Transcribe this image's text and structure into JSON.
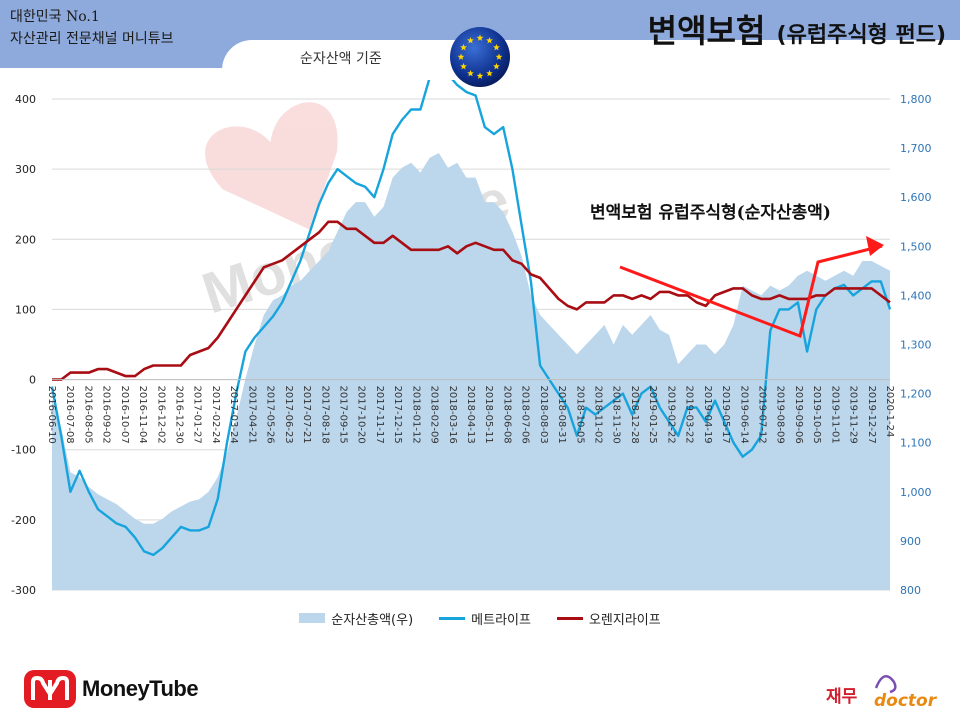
{
  "header": {
    "brand_line1": "대한민국 No.1",
    "brand_line2": "자산관리 전문채널 머니튜브",
    "title_main": "변액보험",
    "title_sub": "(유럽주식형 펀드)",
    "basis_label": "순자산액 기준"
  },
  "annotation": "변액보험 유럽주식형(순자산총액)",
  "watermark": "MoneyTube",
  "colors": {
    "header_bg": "#8eaadc",
    "area": "#bcd6ec",
    "metlife": "#17a4dd",
    "orange": "#a80d13",
    "trend_arrow": "#ff1a1a",
    "right_axis_text": "#2e75b6"
  },
  "legend": {
    "area_label": "순자산총액(우)",
    "metlife_label": "메트라이프",
    "orange_label": "오렌지라이프"
  },
  "footer": {
    "logo_text": "MoneyTube",
    "doctor_text1": "재무",
    "doctor_text2": "doctor"
  },
  "chart_data": {
    "type": "line",
    "left_axis": {
      "min": -300,
      "max": 400,
      "ticks": [
        "400",
        "300",
        "200",
        "100",
        "0",
        "-100",
        "-200",
        "-300"
      ]
    },
    "right_axis": {
      "min": 800,
      "max": 1800,
      "ticks": [
        "1,800",
        "1,700",
        "1,600",
        "1,500",
        "1,400",
        "1,300",
        "1,200",
        "1,100",
        "1,000",
        "900",
        "800"
      ]
    },
    "grid": true,
    "legend_position": "bottom",
    "x_tick_labels": [
      "2016-06-10",
      "2016-07-08",
      "2016-08-05",
      "2016-09-02",
      "2016-10-07",
      "2016-11-04",
      "2016-12-02",
      "2016-12-30",
      "2017-01-27",
      "2017-02-24",
      "2017-03-24",
      "2017-04-21",
      "2017-05-26",
      "2017-06-23",
      "2017-07-21",
      "2017-08-18",
      "2017-09-15",
      "2017-10-20",
      "2017-11-17",
      "2017-12-15",
      "2018-01-12",
      "2018-02-09",
      "2018-03-16",
      "2018-04-13",
      "2018-05-11",
      "2018-06-08",
      "2018-07-06",
      "2018-08-03",
      "2018-08-31",
      "2018-10-05",
      "2018-11-02",
      "2018-11-30",
      "2018-12-28",
      "2019-01-25",
      "2019-02-22",
      "2019-03-22",
      "2019-04-19",
      "2019-05-17",
      "2019-06-14",
      "2019-07-12",
      "2019-08-09",
      "2019-09-06",
      "2019-10-05",
      "2019-11-01",
      "2019-11-29",
      "2019-12-27",
      "2020-1-24"
    ],
    "series": [
      {
        "name": "순자산총액(우)",
        "axis": "right",
        "kind": "area",
        "values": [
          1190,
          1130,
          1040,
          1030,
          1010,
          995,
          985,
          975,
          960,
          945,
          935,
          935,
          945,
          960,
          970,
          980,
          985,
          1000,
          1030,
          1080,
          1150,
          1230,
          1300,
          1360,
          1390,
          1400,
          1420,
          1430,
          1450,
          1470,
          1490,
          1530,
          1570,
          1590,
          1590,
          1560,
          1580,
          1640,
          1660,
          1670,
          1650,
          1680,
          1690,
          1660,
          1670,
          1640,
          1640,
          1590,
          1590,
          1570,
          1530,
          1480,
          1400,
          1360,
          1340,
          1320,
          1300,
          1280,
          1300,
          1320,
          1340,
          1300,
          1340,
          1320,
          1340,
          1360,
          1330,
          1320,
          1260,
          1280,
          1300,
          1300,
          1280,
          1300,
          1340,
          1420,
          1410,
          1400,
          1420,
          1410,
          1420,
          1440,
          1450,
          1440,
          1430,
          1440,
          1450,
          1440,
          1470,
          1470,
          1460,
          1450
        ]
      },
      {
        "name": "메트라이프",
        "axis": "left",
        "values": [
          -10,
          -80,
          -160,
          -130,
          -160,
          -185,
          -195,
          -205,
          -210,
          -225,
          -245,
          -250,
          -240,
          -225,
          -210,
          -215,
          -215,
          -210,
          -170,
          -90,
          -20,
          40,
          60,
          75,
          90,
          110,
          140,
          170,
          210,
          250,
          280,
          300,
          290,
          280,
          275,
          260,
          300,
          350,
          370,
          385,
          385,
          430,
          440,
          435,
          420,
          410,
          405,
          360,
          350,
          360,
          300,
          220,
          140,
          20,
          0,
          -20,
          -40,
          -80,
          -40,
          -50,
          -40,
          -30,
          -20,
          -50,
          -20,
          -10,
          -40,
          -60,
          -80,
          -40,
          -40,
          -60,
          -30,
          -60,
          -90,
          -110,
          -100,
          -80,
          70,
          100,
          100,
          110,
          40,
          100,
          120,
          130,
          135,
          120,
          130,
          140,
          140,
          100
        ]
      },
      {
        "name": "오렌지라이프",
        "axis": "left",
        "values": [
          0,
          0,
          10,
          10,
          10,
          15,
          15,
          10,
          5,
          5,
          15,
          20,
          20,
          20,
          20,
          35,
          40,
          45,
          60,
          80,
          100,
          120,
          140,
          160,
          165,
          170,
          180,
          190,
          200,
          210,
          225,
          225,
          215,
          215,
          205,
          195,
          195,
          205,
          195,
          185,
          185,
          185,
          185,
          190,
          180,
          190,
          195,
          190,
          185,
          185,
          170,
          165,
          150,
          145,
          130,
          115,
          105,
          100,
          110,
          110,
          110,
          120,
          120,
          115,
          120,
          115,
          125,
          125,
          120,
          120,
          110,
          105,
          120,
          125,
          130,
          130,
          120,
          115,
          115,
          120,
          115,
          115,
          115,
          120,
          120,
          130,
          130,
          130,
          130,
          130,
          120,
          110
        ]
      }
    ]
  }
}
